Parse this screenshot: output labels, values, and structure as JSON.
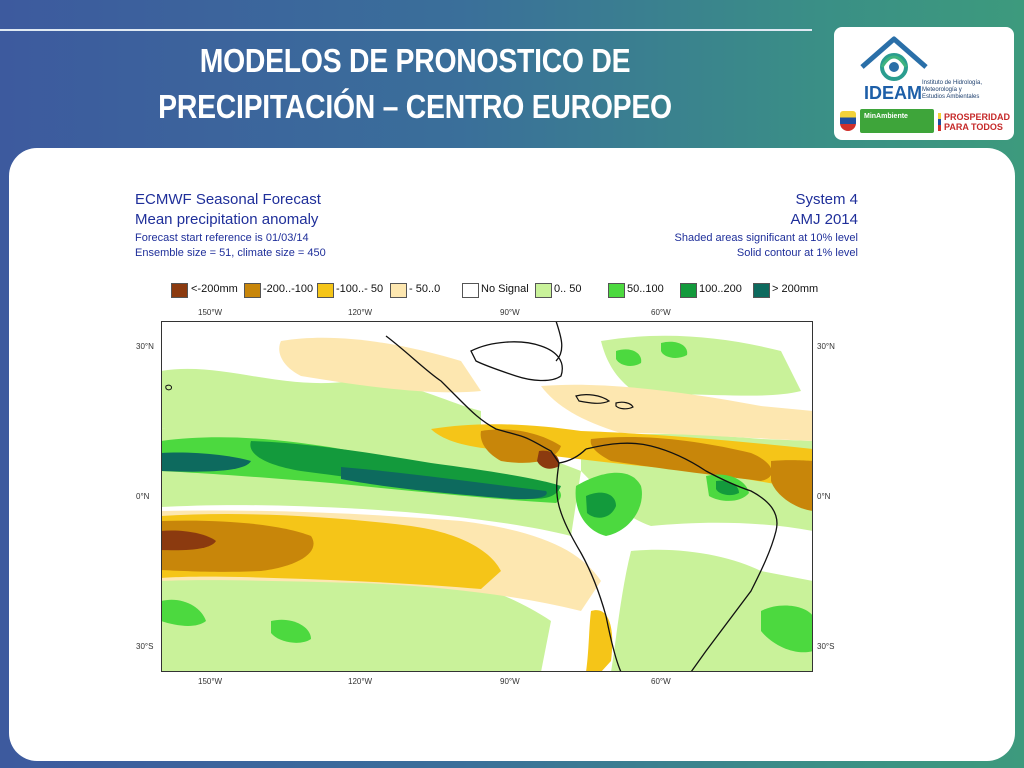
{
  "slide": {
    "title_line1": "MODELOS DE PRONOSTICO DE",
    "title_line2": "PRECIPITACIÓN – CENTRO EUROPEO"
  },
  "logo": {
    "brand": "IDEAM",
    "subtitle_lines": [
      "Instituto de Hidrología,",
      "Meteorología y",
      "Estudios Ambientales"
    ],
    "ministry": "MinAmbiente",
    "prosperity_line1": "PROSPERIDAD",
    "prosperity_line2": "PARA TODOS"
  },
  "map": {
    "header_left": {
      "line1": "ECMWF Seasonal Forecast",
      "line2": "Mean precipitation anomaly",
      "line3": "Forecast start reference is 01/03/14",
      "line4": "Ensemble size = 51, climate size = 450"
    },
    "header_right": {
      "line1": "System 4",
      "line2": "AMJ 2014",
      "line3": "Shaded areas significant at 10% level",
      "line4": "Solid contour at 1% level"
    },
    "legend": [
      {
        "label": "<-200mm",
        "color": "#8b3a0f"
      },
      {
        "label": "-200..-100",
        "color": "#c8860a"
      },
      {
        "label": "-100..- 50",
        "color": "#f5c518"
      },
      {
        "label": "- 50..0",
        "color": "#fde7b0"
      },
      {
        "label": "No Signal",
        "color": "#ffffff"
      },
      {
        "label": "0.. 50",
        "color": "#c9f29a"
      },
      {
        "label": "50..100",
        "color": "#4cd93f"
      },
      {
        "label": "100..200",
        "color": "#139a3c"
      },
      {
        "label": "> 200mm",
        "color": "#0d6a5e"
      }
    ],
    "lon_labels": [
      "150°W",
      "120°W",
      "90°W",
      "60°W"
    ],
    "lat_labels": [
      "30°N",
      "0°N",
      "30°S"
    ]
  }
}
